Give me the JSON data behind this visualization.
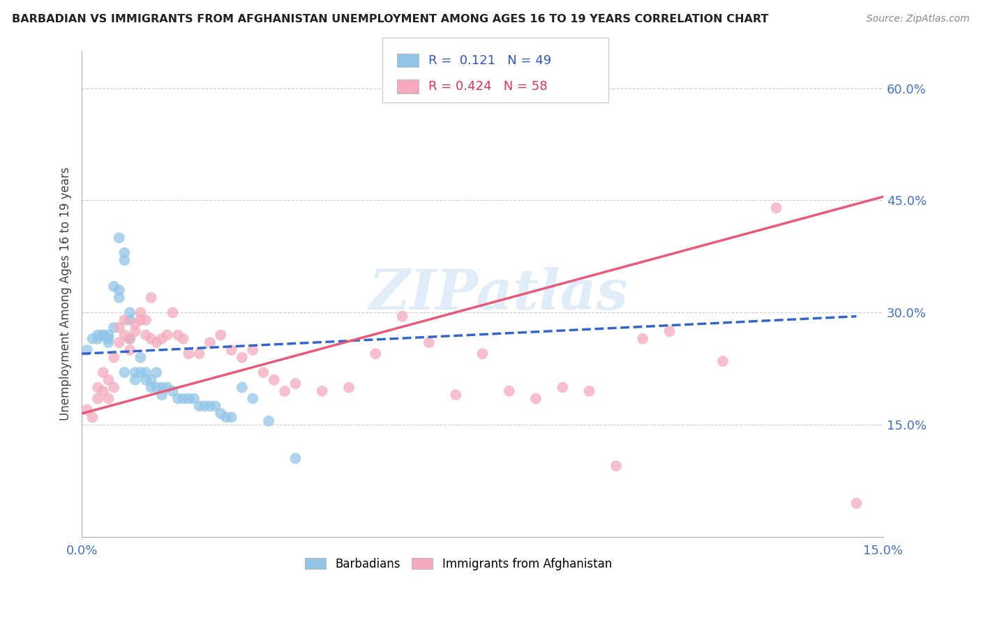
{
  "title": "BARBADIAN VS IMMIGRANTS FROM AFGHANISTAN UNEMPLOYMENT AMONG AGES 16 TO 19 YEARS CORRELATION CHART",
  "source": "Source: ZipAtlas.com",
  "ylabel": "Unemployment Among Ages 16 to 19 years",
  "xlim": [
    0.0,
    0.15
  ],
  "ylim": [
    0.0,
    0.65
  ],
  "ytick_labels_right": [
    "15.0%",
    "30.0%",
    "45.0%",
    "60.0%"
  ],
  "ytick_values_right": [
    0.15,
    0.3,
    0.45,
    0.6
  ],
  "r_blue": 0.121,
  "n_blue": 49,
  "r_pink": 0.424,
  "n_pink": 58,
  "blue_color": "#92C5E8",
  "pink_color": "#F4AABC",
  "trendline_blue_color": "#3366CC",
  "trendline_pink_color": "#E85878",
  "watermark": "ZIPatlas",
  "background_color": "#ffffff",
  "blue_scatter_x": [
    0.001,
    0.002,
    0.003,
    0.003,
    0.004,
    0.004,
    0.005,
    0.005,
    0.005,
    0.006,
    0.006,
    0.007,
    0.007,
    0.007,
    0.008,
    0.008,
    0.008,
    0.009,
    0.009,
    0.009,
    0.01,
    0.01,
    0.011,
    0.011,
    0.012,
    0.012,
    0.013,
    0.013,
    0.014,
    0.014,
    0.015,
    0.015,
    0.016,
    0.017,
    0.018,
    0.019,
    0.02,
    0.021,
    0.022,
    0.023,
    0.024,
    0.025,
    0.026,
    0.027,
    0.028,
    0.03,
    0.032,
    0.035,
    0.04
  ],
  "blue_scatter_y": [
    0.25,
    0.265,
    0.27,
    0.265,
    0.27,
    0.27,
    0.265,
    0.26,
    0.27,
    0.28,
    0.335,
    0.4,
    0.32,
    0.33,
    0.38,
    0.37,
    0.22,
    0.3,
    0.29,
    0.265,
    0.22,
    0.21,
    0.22,
    0.24,
    0.21,
    0.22,
    0.21,
    0.2,
    0.22,
    0.2,
    0.2,
    0.19,
    0.2,
    0.195,
    0.185,
    0.185,
    0.185,
    0.185,
    0.175,
    0.175,
    0.175,
    0.175,
    0.165,
    0.16,
    0.16,
    0.2,
    0.185,
    0.155,
    0.105
  ],
  "pink_scatter_x": [
    0.001,
    0.002,
    0.003,
    0.003,
    0.004,
    0.004,
    0.005,
    0.005,
    0.006,
    0.006,
    0.007,
    0.007,
    0.008,
    0.008,
    0.009,
    0.009,
    0.01,
    0.01,
    0.011,
    0.011,
    0.012,
    0.012,
    0.013,
    0.013,
    0.014,
    0.015,
    0.016,
    0.017,
    0.018,
    0.019,
    0.02,
    0.022,
    0.024,
    0.026,
    0.028,
    0.03,
    0.032,
    0.034,
    0.036,
    0.038,
    0.04,
    0.045,
    0.05,
    0.055,
    0.06,
    0.065,
    0.07,
    0.075,
    0.08,
    0.085,
    0.09,
    0.095,
    0.1,
    0.105,
    0.11,
    0.12,
    0.13,
    0.145
  ],
  "pink_scatter_y": [
    0.17,
    0.16,
    0.185,
    0.2,
    0.195,
    0.22,
    0.185,
    0.21,
    0.2,
    0.24,
    0.28,
    0.26,
    0.29,
    0.27,
    0.265,
    0.25,
    0.285,
    0.275,
    0.29,
    0.3,
    0.29,
    0.27,
    0.32,
    0.265,
    0.26,
    0.265,
    0.27,
    0.3,
    0.27,
    0.265,
    0.245,
    0.245,
    0.26,
    0.27,
    0.25,
    0.24,
    0.25,
    0.22,
    0.21,
    0.195,
    0.205,
    0.195,
    0.2,
    0.245,
    0.295,
    0.26,
    0.19,
    0.245,
    0.195,
    0.185,
    0.2,
    0.195,
    0.095,
    0.265,
    0.275,
    0.235,
    0.44,
    0.045
  ],
  "blue_trend_x0": 0.0,
  "blue_trend_x1": 0.145,
  "blue_trend_y0": 0.245,
  "blue_trend_y1": 0.295,
  "pink_trend_x0": 0.0,
  "pink_trend_x1": 0.15,
  "pink_trend_y0": 0.165,
  "pink_trend_y1": 0.455
}
